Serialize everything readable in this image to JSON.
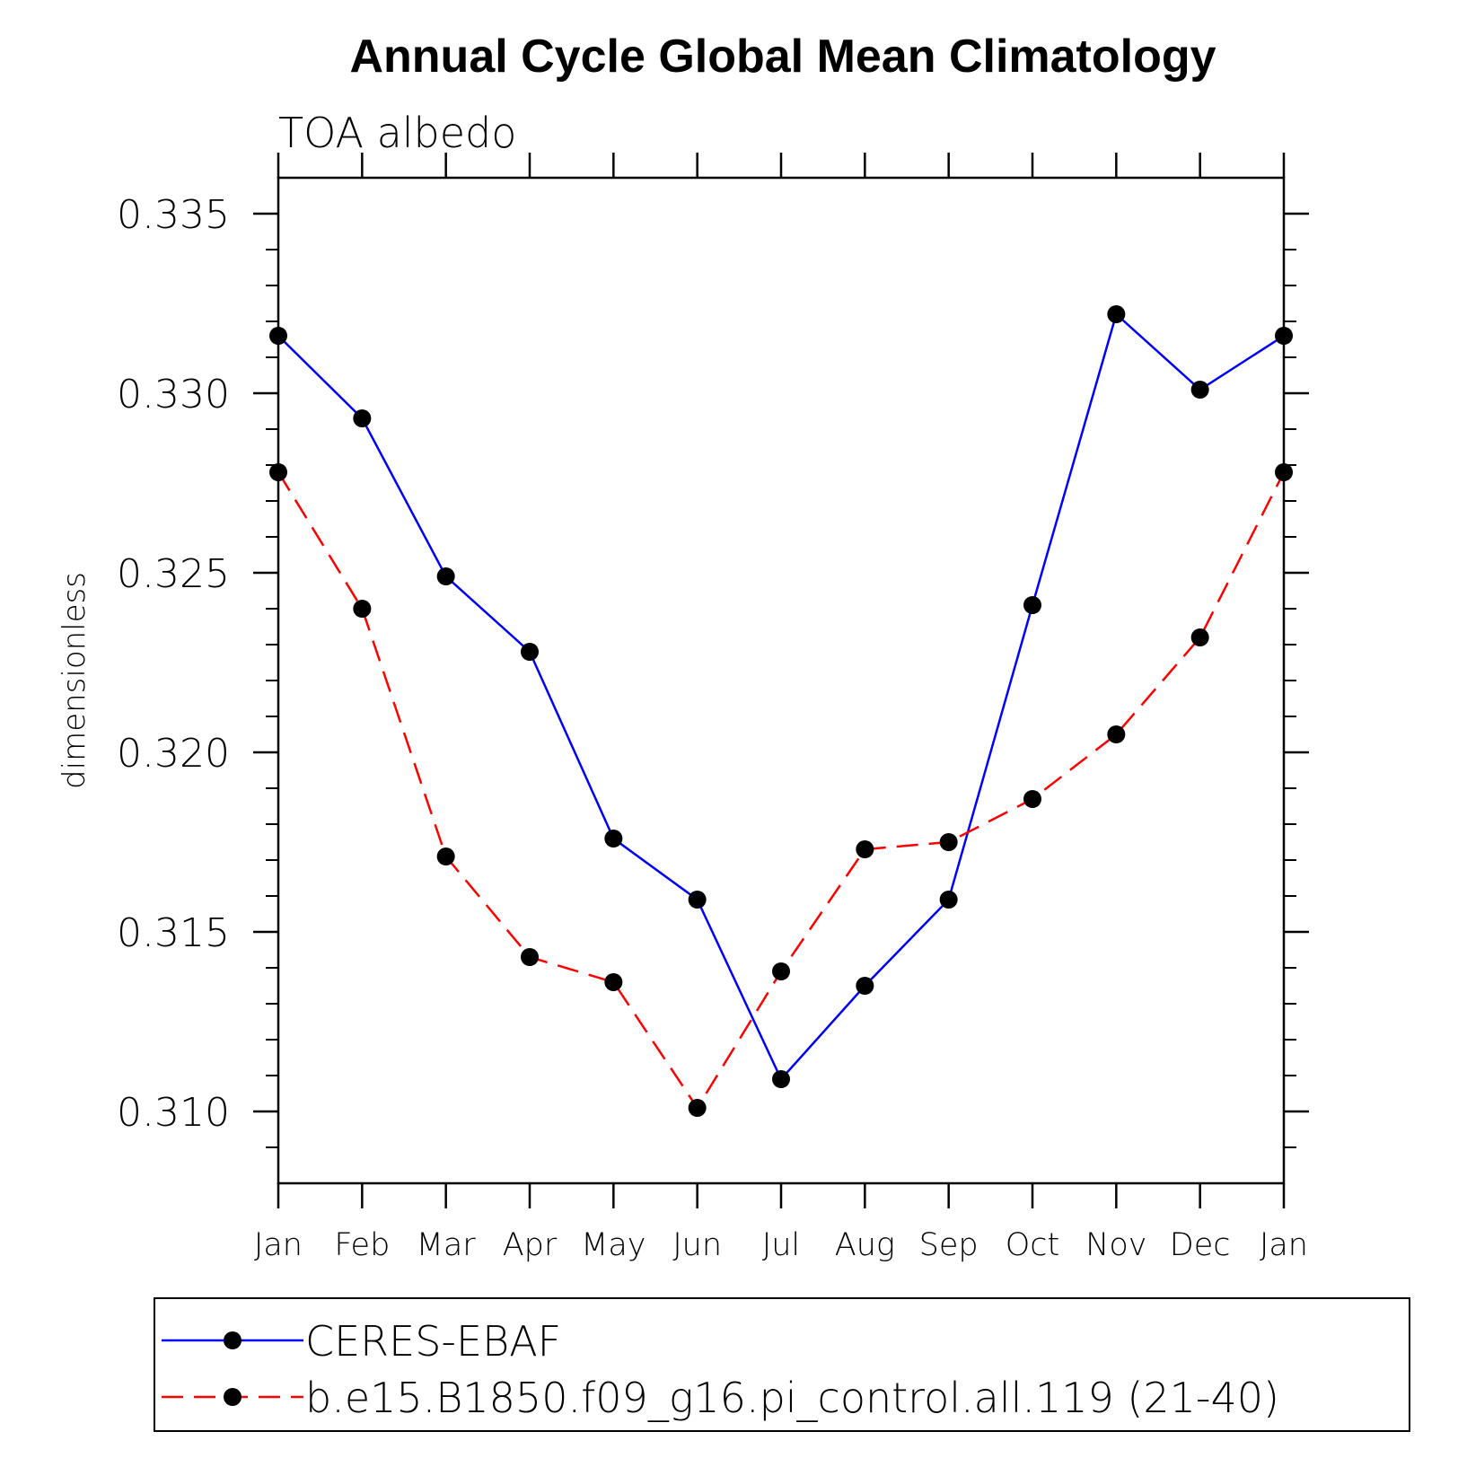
{
  "chart_data": {
    "type": "line",
    "title": "Annual Cycle Global Mean Climatology",
    "subtitle": "TOA albedo",
    "xlabel": "",
    "ylabel": "dimensionless",
    "categories": [
      "Jan",
      "Feb",
      "Mar",
      "Apr",
      "May",
      "Jun",
      "Jul",
      "Aug",
      "Sep",
      "Oct",
      "Nov",
      "Dec",
      "Jan"
    ],
    "ylim": [
      0.308,
      0.336
    ],
    "yticks": [
      "0.310",
      "0.315",
      "0.320",
      "0.325",
      "0.330",
      "0.335"
    ],
    "ytick_values": [
      0.31,
      0.315,
      0.32,
      0.325,
      0.33,
      0.335
    ],
    "y_minor_step": 0.001,
    "grid": false,
    "legend_position": "bottom",
    "series": [
      {
        "name": "CERES-EBAF",
        "color": "#0000ff",
        "line_style": "solid",
        "marker": "filled-circle",
        "values": [
          0.3316,
          0.3293,
          0.3249,
          0.3228,
          0.3176,
          0.3159,
          0.3109,
          0.3135,
          0.3159,
          0.3241,
          0.3322,
          0.3301,
          0.3316
        ]
      },
      {
        "name": "b.e15.B1850.f09_g16.pi_control.all.119 (21-40)",
        "color": "#ff0000",
        "line_style": "dashed",
        "marker": "filled-circle",
        "values": [
          0.3278,
          0.324,
          0.3171,
          0.3143,
          0.3136,
          0.3101,
          0.3139,
          0.3173,
          0.3175,
          0.3187,
          0.3205,
          0.3232,
          0.3278
        ]
      }
    ]
  }
}
